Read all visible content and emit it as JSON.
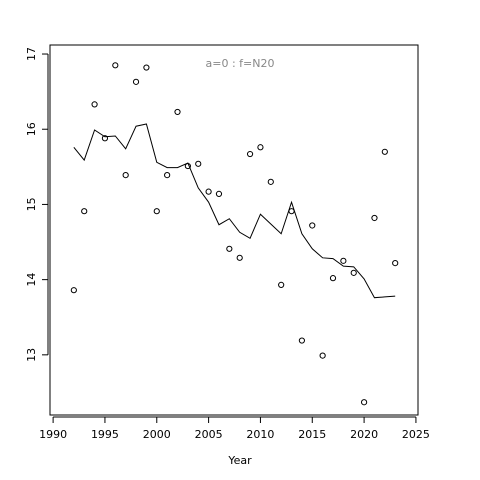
{
  "chart_data": {
    "type": "scatter",
    "annotation": "a=0  :  f=N20",
    "xlabel": "Year",
    "x": [
      1992,
      1993,
      1994,
      1995,
      1996,
      1997,
      1998,
      1999,
      2000,
      2001,
      2002,
      2003,
      2004,
      2005,
      2006,
      2007,
      2008,
      2009,
      2010,
      2011,
      2012,
      2013,
      2014,
      2015,
      2016,
      2017,
      2018,
      2019,
      2020,
      2021,
      2022,
      2023
    ],
    "series": [
      {
        "type": "scatter",
        "color": "#000000",
        "values": [
          13.86,
          14.91,
          16.33,
          15.88,
          16.85,
          15.39,
          16.63,
          16.82,
          14.91,
          15.39,
          16.23,
          15.51,
          15.54,
          15.17,
          15.14,
          14.41,
          14.29,
          15.67,
          15.76,
          15.3,
          13.93,
          14.91,
          13.19,
          14.72,
          12.99,
          14.02,
          14.25,
          14.09,
          12.37,
          14.82,
          15.7,
          14.22
        ]
      },
      {
        "type": "line",
        "color": "#000000",
        "values": [
          15.76,
          15.59,
          15.99,
          15.9,
          15.91,
          15.74,
          16.04,
          16.07,
          15.56,
          15.49,
          15.49,
          15.55,
          15.22,
          15.03,
          14.73,
          14.81,
          14.63,
          14.55,
          14.87,
          14.74,
          14.61,
          15.03,
          14.61,
          14.41,
          14.29,
          14.28,
          14.18,
          14.17,
          14.01,
          13.76,
          13.77,
          13.78
        ]
      }
    ],
    "xlim": [
      1989.7,
      2025.2
    ],
    "ylim": [
      12.2,
      17.12
    ],
    "xticks": [
      1990,
      1995,
      2000,
      2005,
      2010,
      2015,
      2020,
      2025
    ],
    "yticks": [
      13,
      14,
      15,
      16,
      17
    ]
  }
}
